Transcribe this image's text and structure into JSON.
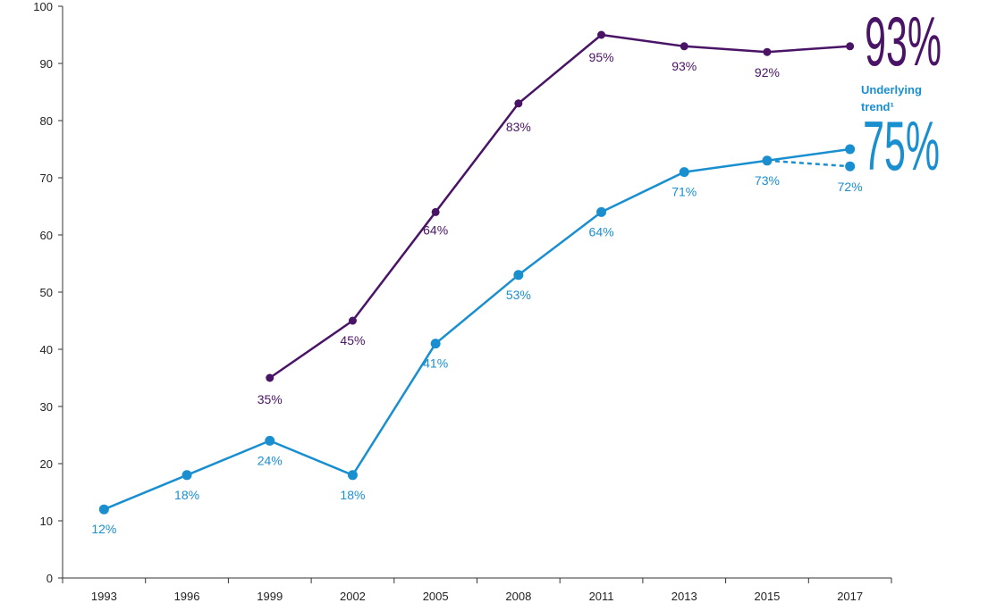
{
  "chart_data": {
    "type": "line",
    "categories": [
      "1993",
      "1996",
      "1999",
      "2002",
      "2005",
      "2008",
      "2011",
      "2013",
      "2015",
      "2017"
    ],
    "ylim": [
      0,
      100
    ],
    "yticks": [
      "0",
      "10",
      "20",
      "30",
      "40",
      "50",
      "60",
      "70",
      "80",
      "90",
      "100"
    ],
    "series": [
      {
        "color": "#4a1466",
        "values": [
          null,
          null,
          35,
          45,
          64,
          83,
          95,
          93,
          92,
          93
        ],
        "data_labels": [
          null,
          null,
          "35%",
          "45%",
          "64%",
          "83%",
          "95%",
          "93%",
          "92%",
          null
        ],
        "end_label": "93%"
      },
      {
        "color": "#1a8fd0",
        "values": [
          12,
          18,
          24,
          18,
          41,
          53,
          64,
          71,
          73,
          72
        ],
        "data_labels": [
          "12%",
          "18%",
          "24%",
          "18%",
          "41%",
          "53%",
          "64%",
          "71%",
          "73%",
          "72%"
        ],
        "trend": {
          "from_category": "2015",
          "from_value": 73,
          "to_category": "2017",
          "to_value": 75
        },
        "trend_label": "Underlying trend¹",
        "end_label": "75%"
      }
    ]
  }
}
